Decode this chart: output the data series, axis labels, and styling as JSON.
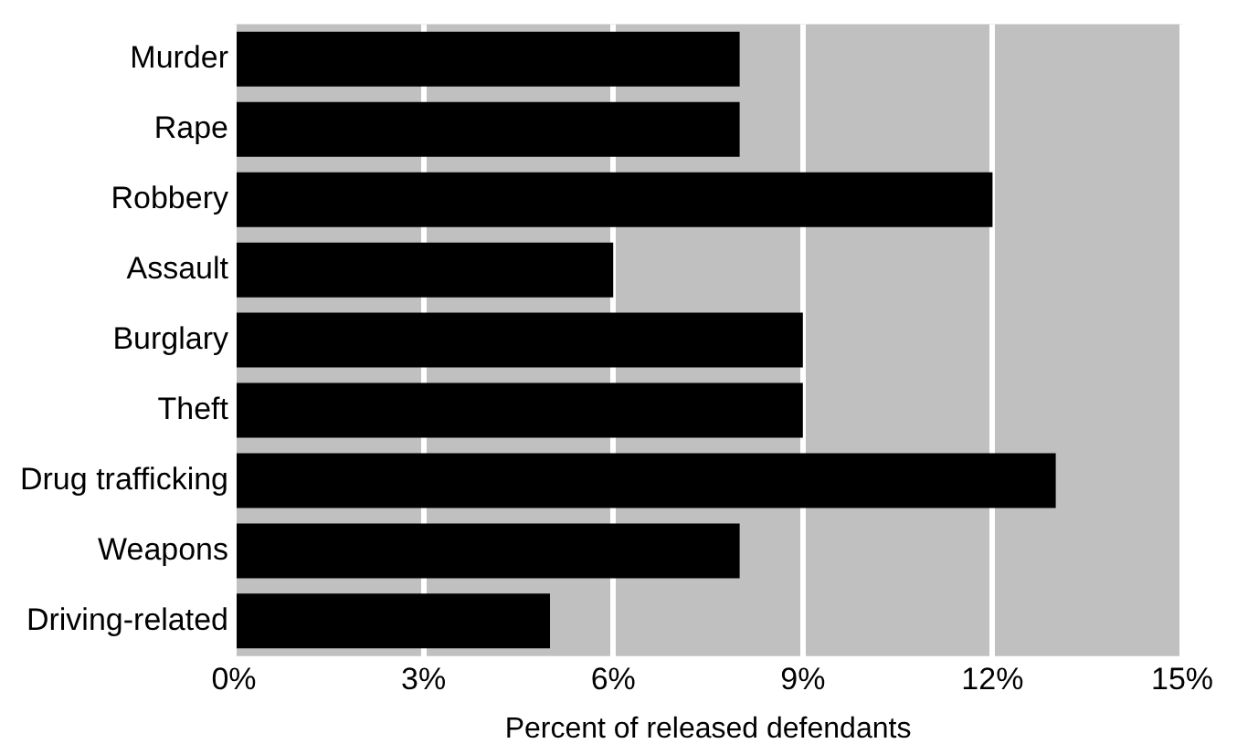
{
  "chart_data": {
    "type": "bar",
    "orientation": "horizontal",
    "xlabel": "Percent of released defendants",
    "categories": [
      "Murder",
      "Rape",
      "Robbery",
      "Assault",
      "Burglary",
      "Theft",
      "Drug trafficking",
      "Weapons",
      "Driving-related"
    ],
    "values": [
      8,
      8,
      12,
      6,
      9,
      9,
      13,
      8,
      5
    ],
    "color": "#000000",
    "xlim": [
      0,
      15
    ],
    "xticks": [
      {
        "value": 0,
        "label": "0%"
      },
      {
        "value": 3,
        "label": "3%"
      },
      {
        "value": 6,
        "label": "6%"
      },
      {
        "value": 9,
        "label": "9%"
      },
      {
        "value": 12,
        "label": "12%"
      },
      {
        "value": 15,
        "label": "15%"
      }
    ],
    "grid": "x",
    "legend": false
  }
}
